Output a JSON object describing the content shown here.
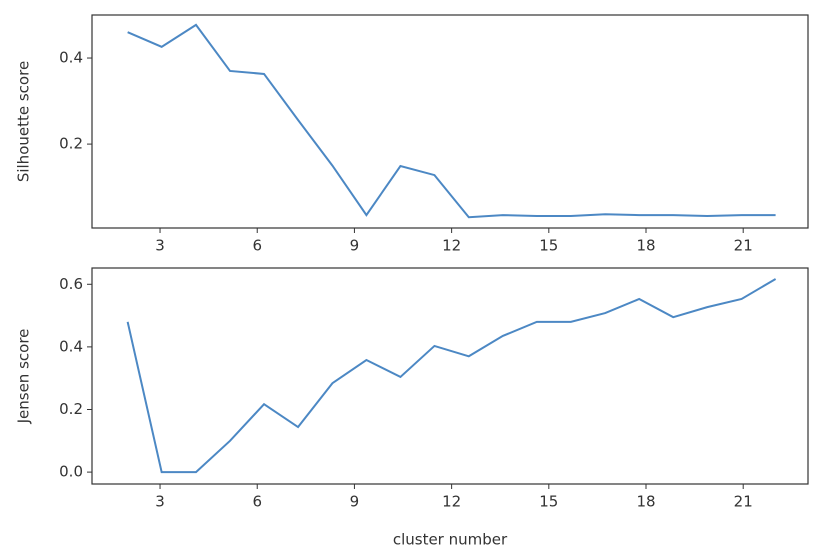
{
  "chart_data": [
    {
      "type": "line",
      "ylabel": "Silhouette score",
      "x": [
        2,
        3.05,
        4.11,
        5.16,
        6.21,
        7.26,
        8.32,
        9.37,
        10.42,
        11.47,
        12.53,
        13.58,
        14.63,
        15.68,
        16.74,
        17.79,
        18.84,
        19.89,
        20.95,
        22
      ],
      "series": [
        {
          "color": "#4c88c4",
          "values": [
            0.46,
            0.426,
            0.477,
            0.37,
            0.363,
            0.256,
            0.15,
            0.035,
            0.149,
            0.128,
            0.03,
            0.035,
            0.033,
            0.033,
            0.037,
            0.035,
            0.035,
            0.033,
            0.035,
            0.035
          ]
        }
      ],
      "xlim": [
        0.9,
        23
      ],
      "xticks": [
        3,
        6,
        9,
        12,
        15,
        18,
        21
      ],
      "ylim": [
        0.005,
        0.5
      ],
      "yticks": [
        0.2,
        0.4
      ]
    },
    {
      "type": "line",
      "ylabel": "Jensen score",
      "xlabel": "cluster number",
      "x": [
        2,
        3.05,
        4.11,
        5.16,
        6.21,
        7.26,
        8.32,
        9.37,
        10.42,
        11.47,
        12.53,
        13.58,
        14.63,
        15.68,
        16.74,
        17.79,
        18.84,
        19.89,
        20.95,
        22
      ],
      "series": [
        {
          "color": "#4c88c4",
          "values": [
            0.48,
            0,
            0,
            0.1,
            0.217,
            0.144,
            0.284,
            0.358,
            0.304,
            0.403,
            0.37,
            0.435,
            0.48,
            0.48,
            0.508,
            0.553,
            0.495,
            0.527,
            0.553,
            0.617
          ]
        }
      ],
      "xlim": [
        0.9,
        23
      ],
      "xticks": [
        3,
        6,
        9,
        12,
        15,
        18,
        21
      ],
      "ylim": [
        -0.038,
        0.652
      ],
      "yticks": [
        {
          "value": 0,
          "label": "0.0"
        },
        0.2,
        0.4,
        0.6
      ]
    }
  ]
}
